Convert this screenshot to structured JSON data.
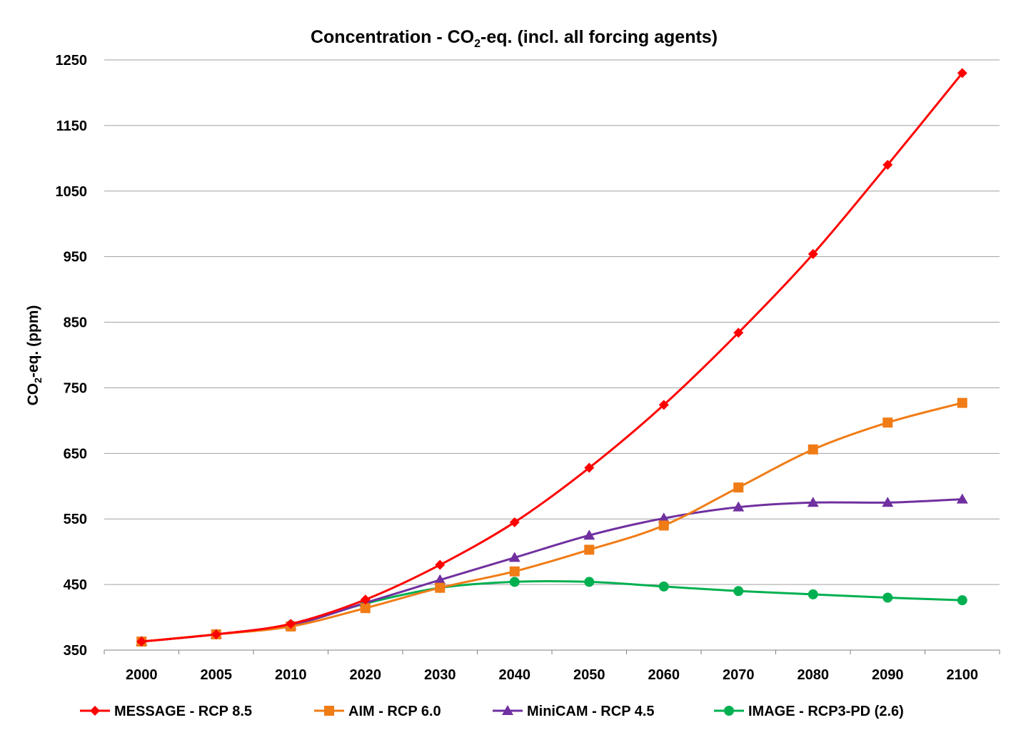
{
  "chart_data": {
    "type": "line",
    "title": "Concentration - CO",
    "title_sub": "2",
    "title_rest": "-eq. (incl. all forcing agents)",
    "xlabel": "",
    "ylabel": "CO",
    "ylabel_sub": "2",
    "ylabel_rest": "-eq. (ppm)",
    "ylim": [
      350,
      1250
    ],
    "yticks": [
      350,
      450,
      550,
      650,
      750,
      850,
      950,
      1050,
      1150,
      1250
    ],
    "grid": true,
    "legend_position": "bottom",
    "categories": [
      "2000",
      "2005",
      "2010",
      "2020",
      "2030",
      "2040",
      "2050",
      "2060",
      "2070",
      "2080",
      "2090",
      "2100"
    ],
    "series": [
      {
        "name": "MESSAGE - RCP 8.5",
        "color": "#ff0000",
        "marker": "diamond",
        "values": [
          363,
          374,
          390,
          427,
          480,
          545,
          628,
          724,
          834,
          954,
          1090,
          1230
        ]
      },
      {
        "name": "AIM - RCP 6.0",
        "color": "#f07c16",
        "marker": "square",
        "values": [
          363,
          374,
          386,
          414,
          445,
          470,
          503,
          540,
          598,
          656,
          697,
          727
        ]
      },
      {
        "name": "MiniCAM - RCP 4.5",
        "color": "#7030a0",
        "marker": "triangle",
        "values": [
          363,
          374,
          388,
          422,
          457,
          491,
          525,
          551,
          568,
          575,
          575,
          580
        ]
      },
      {
        "name": "IMAGE - RCP3-PD (2.6)",
        "color": "#00b050",
        "marker": "circle",
        "values": [
          363,
          374,
          388,
          421,
          445,
          454,
          454,
          447,
          440,
          435,
          430,
          426
        ]
      }
    ]
  }
}
